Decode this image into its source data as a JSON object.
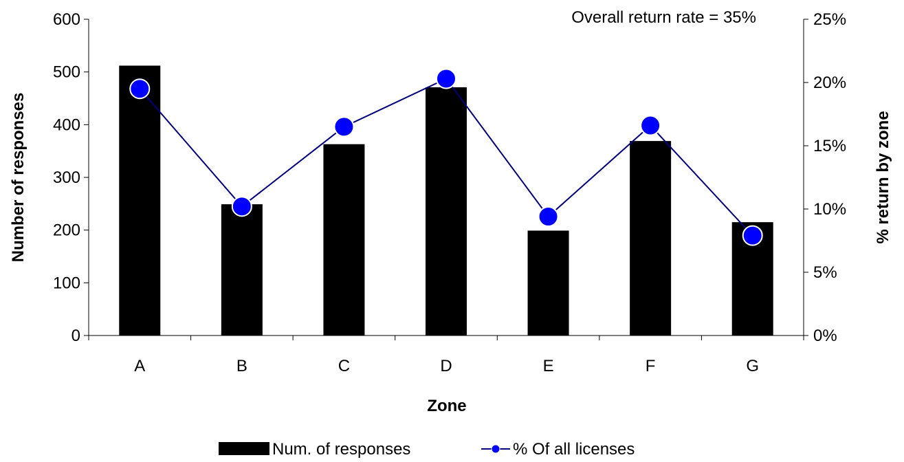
{
  "chart_data": {
    "type": "bar",
    "categories": [
      "A",
      "B",
      "C",
      "D",
      "E",
      "F",
      "G"
    ],
    "series": [
      {
        "name": "Num. of responses",
        "type": "bar",
        "axis": "left",
        "values": [
          512,
          249,
          363,
          471,
          199,
          369,
          215
        ],
        "color": "#000000"
      },
      {
        "name": "% Of all licenses",
        "type": "line",
        "axis": "right",
        "values": [
          19.5,
          10.2,
          16.5,
          20.3,
          9.4,
          16.6,
          7.9
        ],
        "color": "#0000ff",
        "line_color": "#000080"
      }
    ],
    "xlabel": "Zone",
    "ylabel": "Number of responses",
    "y2label": "% return by zone",
    "ylim": [
      0,
      600
    ],
    "y2lim": [
      0,
      25
    ],
    "yticks": [
      "0",
      "100",
      "200",
      "300",
      "400",
      "500",
      "600"
    ],
    "y2ticks": [
      "0%",
      "5%",
      "10%",
      "15%",
      "20%",
      "25%"
    ],
    "annotation": "Overall return rate = 35%",
    "legend_position": "bottom-center",
    "grid": false
  }
}
